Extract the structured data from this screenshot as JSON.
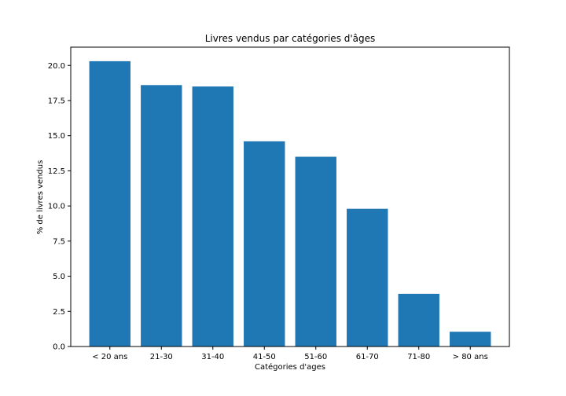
{
  "chart_data": {
    "type": "bar",
    "title": "Livres vendus par catégories d'âges",
    "xlabel": "Catégories d'ages",
    "ylabel": "% de livres vendus",
    "categories": [
      "< 20 ans",
      "21-30",
      "31-40",
      "41-50",
      "51-60",
      "61-70",
      "71-80",
      "> 80 ans"
    ],
    "values": [
      20.3,
      18.6,
      18.5,
      14.6,
      13.5,
      9.8,
      3.75,
      1.05
    ],
    "ylim": [
      0,
      21.3
    ],
    "yticks": [
      "0.0",
      "2.5",
      "5.0",
      "7.5",
      "10.0",
      "12.5",
      "15.0",
      "17.5",
      "20.0"
    ],
    "bar_color": "#1f77b4",
    "grid": false
  }
}
